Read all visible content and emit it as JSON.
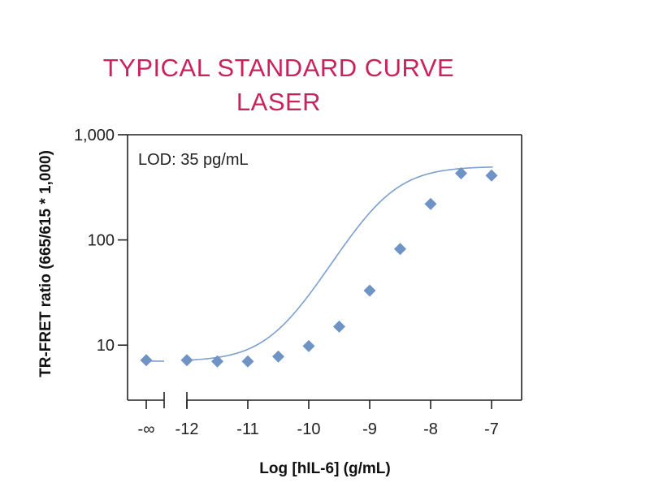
{
  "colors": {
    "title": "#c8235a",
    "series": "#6f93c5",
    "fit": "#7b9fcf",
    "axis": "#222222"
  },
  "chart_data": {
    "type": "scatter",
    "title": [
      "TYPICAL STANDARD CURVE",
      "LASER"
    ],
    "xlabel": "Log [hIL-6] (g/mL)",
    "ylabel": "TR-FRET ratio (665/615 * 1,000)",
    "y_scale": "log",
    "ylim": [
      3,
      1000
    ],
    "y_ticks": [
      {
        "value": 10,
        "label": "10"
      },
      {
        "value": 100,
        "label": "100"
      },
      {
        "value": 1000,
        "label": "1,000"
      }
    ],
    "xlim": [
      -12.3,
      -6.5
    ],
    "x_ticks": [
      {
        "value": -12,
        "label": "-12"
      },
      {
        "value": -11,
        "label": "-11"
      },
      {
        "value": -10,
        "label": "-10"
      },
      {
        "value": -9,
        "label": "-9"
      },
      {
        "value": -8,
        "label": "-8"
      },
      {
        "value": -7,
        "label": "-7"
      }
    ],
    "x_break": {
      "label": "-∞"
    },
    "annotation": "LOD: 35 pg/mL",
    "grid": false,
    "legend": "none",
    "blank_point": {
      "x": "-∞",
      "y": 7.2
    },
    "points": [
      {
        "x": -12,
        "y": 7.2
      },
      {
        "x": -11.5,
        "y": 7.0
      },
      {
        "x": -11,
        "y": 7.0
      },
      {
        "x": -10.5,
        "y": 7.8
      },
      {
        "x": -10,
        "y": 9.8
      },
      {
        "x": -9.5,
        "y": 15
      },
      {
        "x": -9,
        "y": 33
      },
      {
        "x": -8.5,
        "y": 82
      },
      {
        "x": -8,
        "y": 220
      },
      {
        "x": -7.5,
        "y": 430
      },
      {
        "x": -7,
        "y": 410
      }
    ],
    "fit": {
      "model": "4PL",
      "bottom": 7.0,
      "top": 500,
      "log_ec50": -8.75,
      "hill": 1.05
    }
  }
}
